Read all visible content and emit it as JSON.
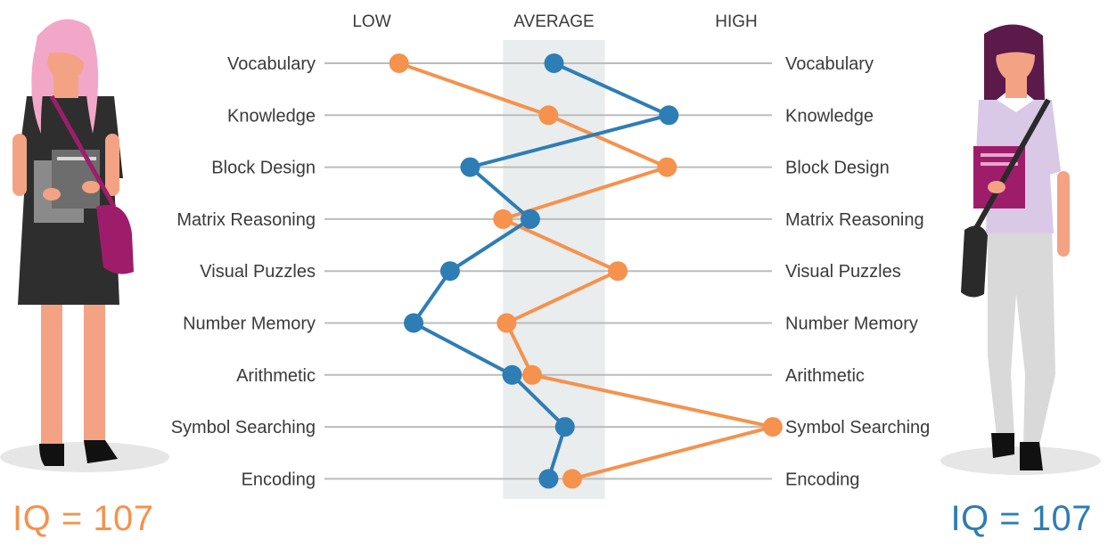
{
  "chart_data": {
    "type": "line",
    "scale_labels": [
      "LOW",
      "AVERAGE",
      "HIGH"
    ],
    "categories": [
      "Vocabulary",
      "Knowledge",
      "Block Design",
      "Matrix Reasoning",
      "Visual Puzzles",
      "Number Memory",
      "Arithmetic",
      "Symbol Searching",
      "Encoding"
    ],
    "series": [
      {
        "color": "#f5924d",
        "values": [
          -0.85,
          -0.03,
          0.62,
          -0.28,
          0.35,
          -0.26,
          -0.12,
          1.2,
          0.1
        ]
      },
      {
        "color": "#2e7db5",
        "values": [
          0.0,
          0.63,
          -0.46,
          -0.13,
          -0.57,
          -0.77,
          -0.23,
          0.06,
          -0.03
        ]
      }
    ],
    "xlim": [
      -1.0,
      1.0
    ],
    "average_band": [
      -0.28,
      0.28
    ],
    "grid": true
  },
  "people": {
    "left": {
      "iq_label": "IQ = 107",
      "color": "#f5924d"
    },
    "right": {
      "iq_label": "IQ = 107",
      "color": "#2e7db5"
    }
  },
  "colors": {
    "band": "#e9edee",
    "gridline": "#bcbcbc",
    "text": "#3a3a3a"
  }
}
